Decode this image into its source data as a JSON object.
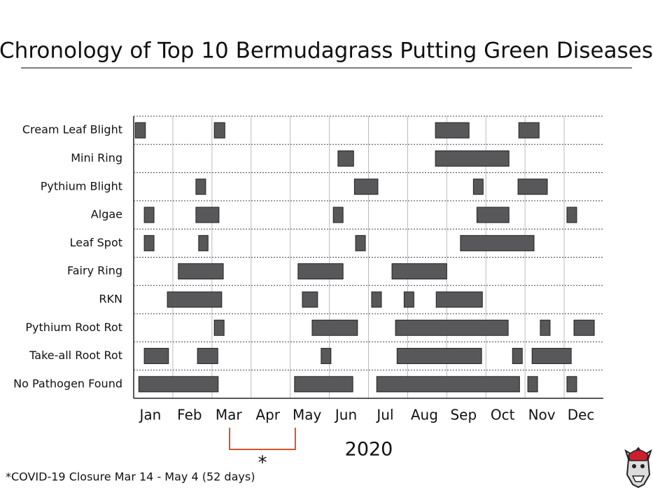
{
  "chart_data": {
    "type": "gantt",
    "title": "Chronology of Top 10 Bermudagrass Putting Green Diseases",
    "months": [
      "Jan",
      "Feb",
      "Mar",
      "Apr",
      "May",
      "Jun",
      "Jul",
      "Aug",
      "Sep",
      "Oct",
      "Nov",
      "Dec"
    ],
    "xlabel": "2020",
    "xlim": [
      0,
      12
    ],
    "color": "#58585a",
    "grid": true,
    "series": [
      {
        "name": "Cream Leaf Blight",
        "ranges": [
          [
            0.04,
            0.3
          ],
          [
            2.06,
            2.33
          ],
          [
            7.71,
            8.57
          ],
          [
            9.84,
            10.36
          ]
        ]
      },
      {
        "name": "Mini Ring",
        "ranges": [
          [
            5.22,
            5.62
          ],
          [
            7.71,
            9.59
          ]
        ]
      },
      {
        "name": "Pythium Blight",
        "ranges": [
          [
            1.59,
            1.84
          ],
          [
            5.64,
            6.24
          ],
          [
            8.68,
            8.93
          ],
          [
            9.82,
            10.57
          ]
        ]
      },
      {
        "name": "Algae",
        "ranges": [
          [
            0.27,
            0.52
          ],
          [
            1.59,
            2.18
          ],
          [
            5.1,
            5.35
          ],
          [
            8.77,
            9.59
          ],
          [
            11.07,
            11.32
          ]
        ]
      },
      {
        "name": "Leaf Spot",
        "ranges": [
          [
            0.27,
            0.52
          ],
          [
            1.66,
            1.9
          ],
          [
            5.67,
            5.92
          ],
          [
            8.35,
            10.23
          ]
        ]
      },
      {
        "name": "Fairy Ring",
        "ranges": [
          [
            1.14,
            2.29
          ],
          [
            4.2,
            5.35
          ],
          [
            6.6,
            8.0
          ]
        ]
      },
      {
        "name": "RKN",
        "ranges": [
          [
            0.86,
            2.25
          ],
          [
            4.31,
            4.7
          ],
          [
            6.08,
            6.33
          ],
          [
            6.91,
            7.16
          ],
          [
            7.73,
            8.91
          ]
        ]
      },
      {
        "name": "Pythium Root Rot",
        "ranges": [
          [
            2.06,
            2.31
          ],
          [
            4.56,
            5.72
          ],
          [
            6.69,
            9.57
          ],
          [
            10.39,
            10.64
          ],
          [
            11.25,
            11.77
          ]
        ]
      },
      {
        "name": "Take-all Root Rot",
        "ranges": [
          [
            0.27,
            0.89
          ],
          [
            1.63,
            2.15
          ],
          [
            4.79,
            5.04
          ],
          [
            6.73,
            8.89
          ],
          [
            9.68,
            9.93
          ],
          [
            10.18,
            11.18
          ]
        ]
      },
      {
        "name": "No Pathogen Found",
        "ranges": [
          [
            0.13,
            2.16
          ],
          [
            4.11,
            5.6
          ],
          [
            6.21,
            9.86
          ],
          [
            10.07,
            10.32
          ],
          [
            11.07,
            11.32
          ]
        ]
      }
    ],
    "closure": [
      2.45,
      4.13
    ],
    "closure_mark": "*",
    "footnote": "*COVID-19 Closure Mar 14 - May 4 (52 days)"
  }
}
